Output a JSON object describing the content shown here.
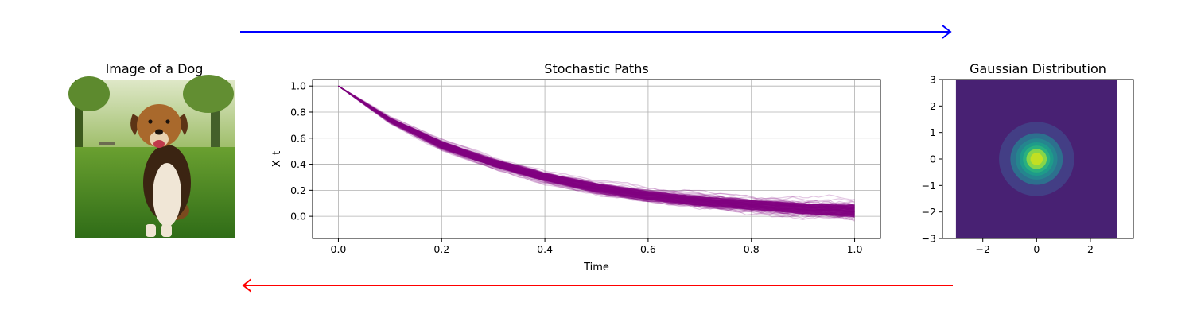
{
  "panels": {
    "dog": {
      "title": "Image of a Dog"
    },
    "paths": {
      "title": "Stochastic Paths",
      "xlabel": "Time",
      "ylabel": "X_t"
    },
    "gaussian": {
      "title": "Gaussian Distribution"
    }
  },
  "arrows": {
    "forward_color": "#0000ff",
    "reverse_color": "#ff0000"
  },
  "colors": {
    "path_color": "#800080",
    "grid": "#b0b0b0",
    "viridis": [
      "#482173",
      "#433e85",
      "#38588c",
      "#2d708e",
      "#25858e",
      "#1e9b8a",
      "#2ab07f",
      "#52c569",
      "#86d549",
      "#c2df23",
      "#fde725"
    ]
  },
  "chart_data": [
    {
      "type": "line",
      "title": "Stochastic Paths",
      "xlabel": "Time",
      "ylabel": "X_t",
      "xlim": [
        -0.05,
        1.05
      ],
      "ylim": [
        -0.17,
        1.05
      ],
      "xticks": [
        "0.0",
        "0.2",
        "0.4",
        "0.6",
        "0.8",
        "1.0"
      ],
      "yticks": [
        "0.0",
        "0.2",
        "0.4",
        "0.6",
        "0.8",
        "1.0"
      ],
      "grid": true,
      "x": [
        0.0,
        0.1,
        0.2,
        0.3,
        0.4,
        0.5,
        0.6,
        0.7,
        0.8,
        0.9,
        1.0
      ],
      "mean_path": [
        1.0,
        0.74,
        0.55,
        0.41,
        0.3,
        0.22,
        0.16,
        0.12,
        0.09,
        0.065,
        0.05
      ],
      "band_low": [
        1.0,
        0.71,
        0.5,
        0.36,
        0.25,
        0.16,
        0.1,
        0.05,
        0.02,
        -0.02,
        -0.05
      ],
      "band_high": [
        1.0,
        0.77,
        0.6,
        0.46,
        0.36,
        0.28,
        0.22,
        0.18,
        0.15,
        0.13,
        0.11
      ]
    },
    {
      "type": "heatmap",
      "title": "Gaussian Distribution",
      "xlim": [
        -3.5,
        3.6
      ],
      "ylim": [
        -3,
        3
      ],
      "xticks": [
        "−2",
        "0",
        "2"
      ],
      "yticks": [
        "−3",
        "−2",
        "−1",
        "0",
        "1",
        "2",
        "3"
      ],
      "extent": [
        -3,
        3,
        -3,
        3
      ],
      "mean": [
        0,
        0
      ],
      "std": 0.5
    }
  ]
}
